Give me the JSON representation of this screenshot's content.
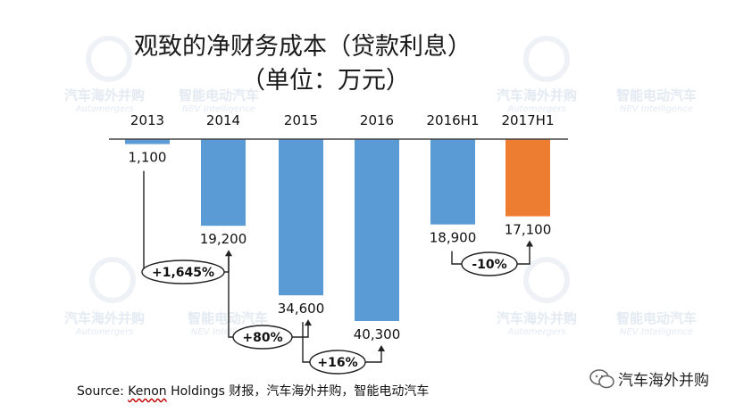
{
  "title_line1": "观致的净财务成本（贷款利息）",
  "title_line2": "（单位：万元）",
  "source": "Source: Kenon Holdings 财报，汽车海外并购，智能电动汽车",
  "source_prefix": "Source: ",
  "source_link": "Kenon",
  "source_rest": " Holdings 财报，汽车海外并购，智能电动汽车",
  "brand_label": "汽车海外并购",
  "watermarks": {
    "automergers_cn": "汽车海外并购",
    "automergers_en": "Automergers",
    "nev_cn": "智能电动汽车",
    "nev_en": "NEV Intelligence"
  },
  "colors": {
    "bar": "#5b9bd5",
    "highlight": "#ed7d31",
    "axis": "#444444"
  },
  "chart_data": {
    "type": "bar",
    "categories": [
      "2013",
      "2014",
      "2015",
      "2016",
      "2016H1",
      "2017H1"
    ],
    "values": [
      1100,
      19200,
      34600,
      40300,
      18900,
      17100
    ],
    "value_labels": [
      "1,100",
      "19,200",
      "34,600",
      "40,300",
      "18,900",
      "17,100"
    ],
    "orientation": "downward",
    "highlight_index": 5,
    "annotations": [
      {
        "from": "2013",
        "to": "2014",
        "label": "+1,645%"
      },
      {
        "from": "2014",
        "to": "2015",
        "label": "+80%"
      },
      {
        "from": "2015",
        "to": "2016",
        "label": "+16%"
      },
      {
        "from": "2016H1",
        "to": "2017H1",
        "label": "-10%"
      }
    ]
  }
}
